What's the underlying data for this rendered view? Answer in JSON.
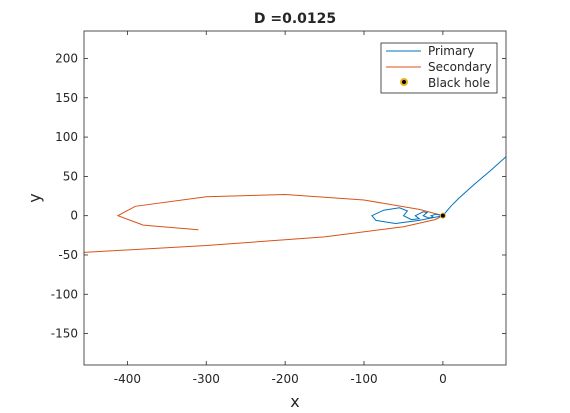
{
  "chart_data": {
    "type": "line",
    "title": "D =0.0125",
    "xlabel": "x",
    "ylabel": "y",
    "xlim": [
      -455,
      80
    ],
    "ylim": [
      -190,
      235
    ],
    "xticks": [
      -400,
      -300,
      -200,
      -100,
      0
    ],
    "yticks": [
      200,
      150,
      100,
      50,
      0,
      -50,
      -100,
      -150
    ],
    "grid": false,
    "legend_position": "top-right",
    "series": [
      {
        "name": "Primary",
        "color": "#0072BD",
        "x": [
          80,
          60,
          40,
          20,
          10,
          5,
          0,
          -30,
          -60,
          -85,
          -90,
          -75,
          -55,
          -45,
          -50,
          -40,
          -30,
          -35,
          -25,
          -20,
          -25,
          -18,
          -12,
          -15,
          -8,
          -5,
          0
        ],
        "y": [
          75,
          57,
          40,
          22,
          12,
          6,
          0,
          -6,
          -10,
          -6,
          0,
          7,
          10,
          6,
          0,
          -5,
          -4,
          0,
          5,
          4,
          0,
          -3,
          -2,
          0,
          2,
          1,
          0
        ]
      },
      {
        "name": "Secondary",
        "color": "#D95319",
        "x": [
          -460,
          -300,
          -150,
          -50,
          -10,
          0,
          -30,
          -100,
          -200,
          -300,
          -390,
          -412,
          -380,
          -310
        ],
        "y": [
          -47,
          -38,
          -27,
          -14,
          -5,
          0,
          8,
          20,
          27,
          24,
          12,
          0,
          -12,
          -18
        ]
      },
      {
        "name": "Black hole",
        "marker": "point",
        "color": "#000000",
        "edge_color": "#EDB120",
        "x": [
          0
        ],
        "y": [
          0
        ]
      }
    ]
  }
}
